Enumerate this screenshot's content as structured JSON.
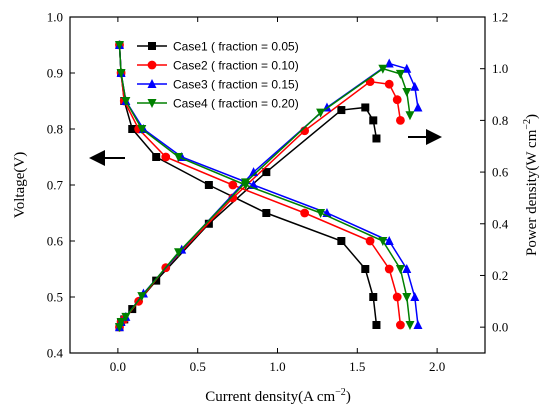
{
  "chart_data": {
    "type": "line",
    "xlabel": "Current density(A cm",
    "xlabel_sup": "−2",
    "xlabel_end": ")",
    "ylabel": "Voltage(V)",
    "y2label": "Power density(W cm",
    "y2label_sup": "−2",
    "y2label_end": ")",
    "xlim": [
      -0.3,
      2.3
    ],
    "ylim": [
      0.4,
      1.0
    ],
    "y2lim": [
      -0.1,
      1.2
    ],
    "xticks": [
      "0.0",
      "0.5",
      "1.0",
      "1.5",
      "2.0"
    ],
    "yticks": [
      "0.4",
      "0.5",
      "0.6",
      "0.7",
      "0.8",
      "0.9",
      "1.0"
    ],
    "y2ticks": [
      "0.0",
      "0.2",
      "0.4",
      "0.6",
      "0.8",
      "1.0",
      "1.2"
    ],
    "legend_position": "top-left",
    "annotations": [
      "left-arrow (voltage curves → left axis)",
      "right-arrow (power curves → right axis)"
    ],
    "series": [
      {
        "name": "Case1 ( fraction = 0.05)",
        "color": "#000000",
        "marker": "square",
        "voltage": {
          "x": [
            0.01,
            0.02,
            0.04,
            0.09,
            0.24,
            0.57,
            0.93,
            1.4,
            1.55,
            1.6,
            1.62
          ],
          "y": [
            0.95,
            0.9,
            0.85,
            0.8,
            0.75,
            0.7,
            0.65,
            0.6,
            0.55,
            0.5,
            0.45
          ]
        },
        "power": {
          "x": [
            0.01,
            0.02,
            0.04,
            0.09,
            0.24,
            0.57,
            0.93,
            1.4,
            1.55,
            1.6,
            1.62
          ],
          "y": [
            0.0,
            0.02,
            0.03,
            0.07,
            0.18,
            0.4,
            0.6,
            0.84,
            0.85,
            0.8,
            0.73
          ]
        }
      },
      {
        "name": "Case2 ( fraction = 0.10)",
        "color": "#ff0000",
        "marker": "circle",
        "voltage": {
          "x": [
            0.01,
            0.02,
            0.04,
            0.13,
            0.3,
            0.72,
            1.17,
            1.58,
            1.7,
            1.75,
            1.77
          ],
          "y": [
            0.95,
            0.9,
            0.85,
            0.8,
            0.75,
            0.7,
            0.65,
            0.6,
            0.55,
            0.5,
            0.45
          ]
        },
        "power": {
          "x": [
            0.01,
            0.02,
            0.04,
            0.13,
            0.3,
            0.72,
            1.17,
            1.58,
            1.7,
            1.75,
            1.77
          ],
          "y": [
            0.0,
            0.02,
            0.03,
            0.1,
            0.23,
            0.5,
            0.76,
            0.95,
            0.94,
            0.88,
            0.8
          ]
        }
      },
      {
        "name": "Case3 ( fraction = 0.15)",
        "color": "#0000ff",
        "marker": "triangle-up",
        "voltage": {
          "x": [
            0.01,
            0.02,
            0.05,
            0.16,
            0.4,
            0.85,
            1.31,
            1.7,
            1.81,
            1.86,
            1.88
          ],
          "y": [
            0.95,
            0.9,
            0.85,
            0.8,
            0.75,
            0.7,
            0.65,
            0.6,
            0.55,
            0.5,
            0.45
          ]
        },
        "power": {
          "x": [
            0.01,
            0.02,
            0.05,
            0.16,
            0.4,
            0.85,
            1.31,
            1.7,
            1.81,
            1.86,
            1.88
          ],
          "y": [
            0.0,
            0.02,
            0.04,
            0.13,
            0.3,
            0.6,
            0.85,
            1.02,
            1.0,
            0.93,
            0.85
          ]
        }
      },
      {
        "name": "Case4 ( fraction = 0.20)",
        "color": "#008000",
        "marker": "triangle-down",
        "voltage": {
          "x": [
            0.01,
            0.02,
            0.05,
            0.15,
            0.38,
            0.8,
            1.27,
            1.66,
            1.77,
            1.81,
            1.83
          ],
          "y": [
            0.95,
            0.9,
            0.85,
            0.8,
            0.75,
            0.7,
            0.65,
            0.6,
            0.55,
            0.5,
            0.45
          ]
        },
        "power": {
          "x": [
            0.01,
            0.02,
            0.05,
            0.15,
            0.38,
            0.8,
            1.27,
            1.66,
            1.77,
            1.81,
            1.83
          ],
          "y": [
            0.0,
            0.02,
            0.04,
            0.12,
            0.29,
            0.56,
            0.83,
            1.0,
            0.98,
            0.91,
            0.82
          ]
        }
      }
    ]
  }
}
